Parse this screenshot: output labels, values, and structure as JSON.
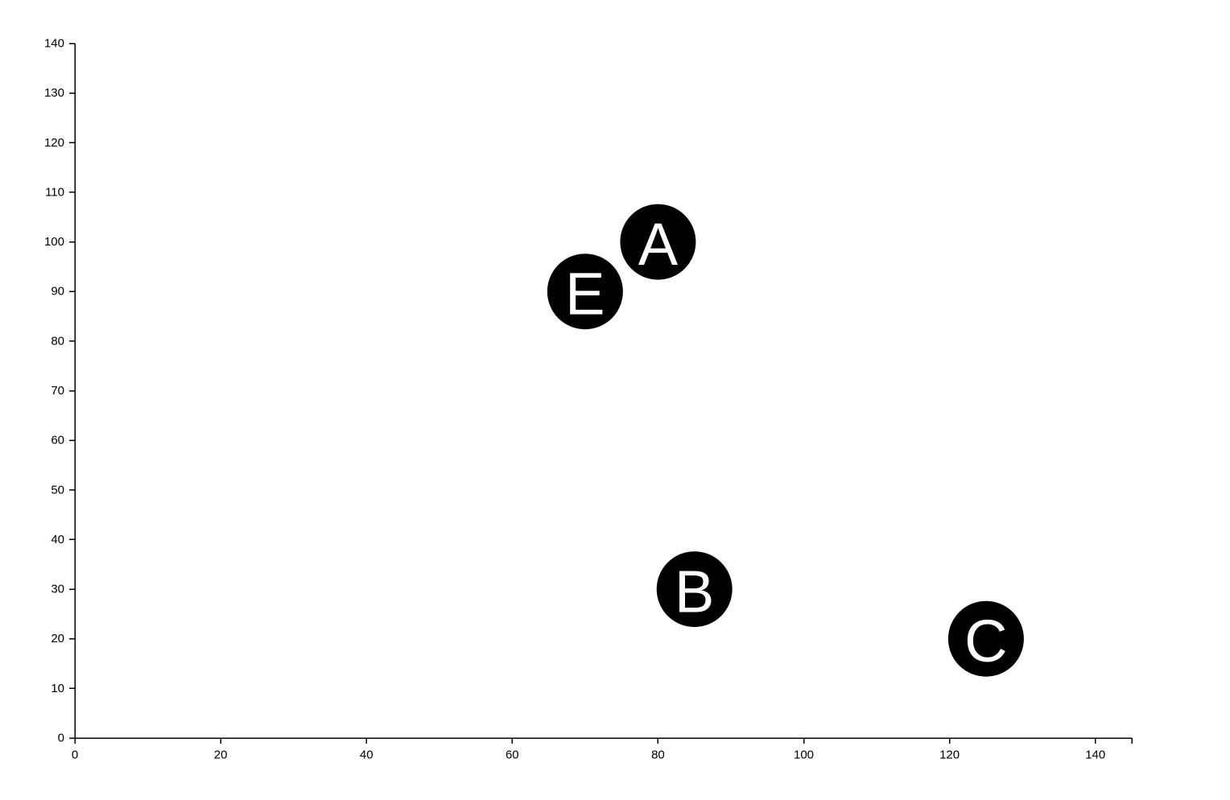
{
  "chart_data": {
    "type": "scatter",
    "title": "",
    "xlabel": "",
    "ylabel": "",
    "xlim": [
      0,
      145
    ],
    "ylim": [
      0,
      140
    ],
    "x_ticks": [
      0,
      20,
      40,
      60,
      80,
      100,
      120,
      140
    ],
    "y_ticks": [
      0,
      10,
      20,
      30,
      40,
      50,
      60,
      70,
      80,
      90,
      100,
      110,
      120,
      130,
      140
    ],
    "grid": false,
    "legend": "none",
    "marker_color": "#000000",
    "label_color": "#ffffff",
    "points": [
      {
        "label": "A",
        "x": 80,
        "y": 100
      },
      {
        "label": "E",
        "x": 70,
        "y": 90
      },
      {
        "label": "B",
        "x": 85,
        "y": 30
      },
      {
        "label": "C",
        "x": 125,
        "y": 20
      }
    ]
  }
}
